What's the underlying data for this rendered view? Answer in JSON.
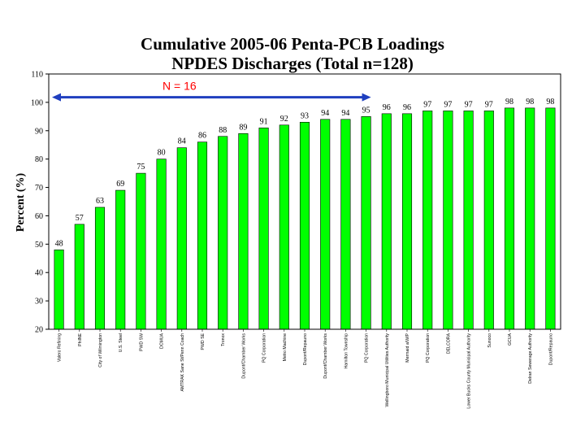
{
  "chart_data": {
    "type": "bar",
    "title": "Cumulative 2005-06 Penta-PCB Loadings",
    "subtitle": "NPDES Discharges (Total n=128)",
    "xlabel": "",
    "ylabel": "Percent (%)",
    "ylim": [
      20,
      110
    ],
    "yticks": [
      20,
      30,
      40,
      50,
      60,
      70,
      80,
      90,
      100,
      110
    ],
    "grid": false,
    "bar_color": "#00ff00",
    "bar_edge_color": "#000000",
    "categories": [
      "Valero Refining",
      "PhilNE",
      "City of Wilmington",
      "U.S. Steel",
      "PWD SW",
      "DCMUA",
      "AMTRAK Sane St/Penn Coach",
      "PWD SE",
      "Tronox",
      "Dupont/Chamber Works",
      "PQ Corporation",
      "Metro Machine",
      "Dupont/Repauno",
      "Dupont/Chamber Works",
      "Hamilton Township",
      "PQ Corporation",
      "Wellingboro Municipal Utilities Authority",
      "Mermaid a/W/P",
      "PQ Corporation",
      "DELCORA",
      "Lower Bucks County Municipal Authority",
      "Sunoco",
      "GCUA",
      "Delran Sewerage Authority",
      "Dupont/Repauno"
    ],
    "values": [
      48,
      57,
      63,
      69,
      75,
      80,
      84,
      86,
      88,
      89,
      91,
      92,
      93,
      94,
      94,
      95,
      96,
      96,
      97,
      97,
      97,
      97,
      98,
      98,
      98
    ],
    "annotation": {
      "text": "N = 16",
      "color": "#ff0000",
      "arrow_color": "#1f3fbf",
      "arrow_y_value": 101.8,
      "from_category_index": 0,
      "to_category_index": 15
    }
  }
}
